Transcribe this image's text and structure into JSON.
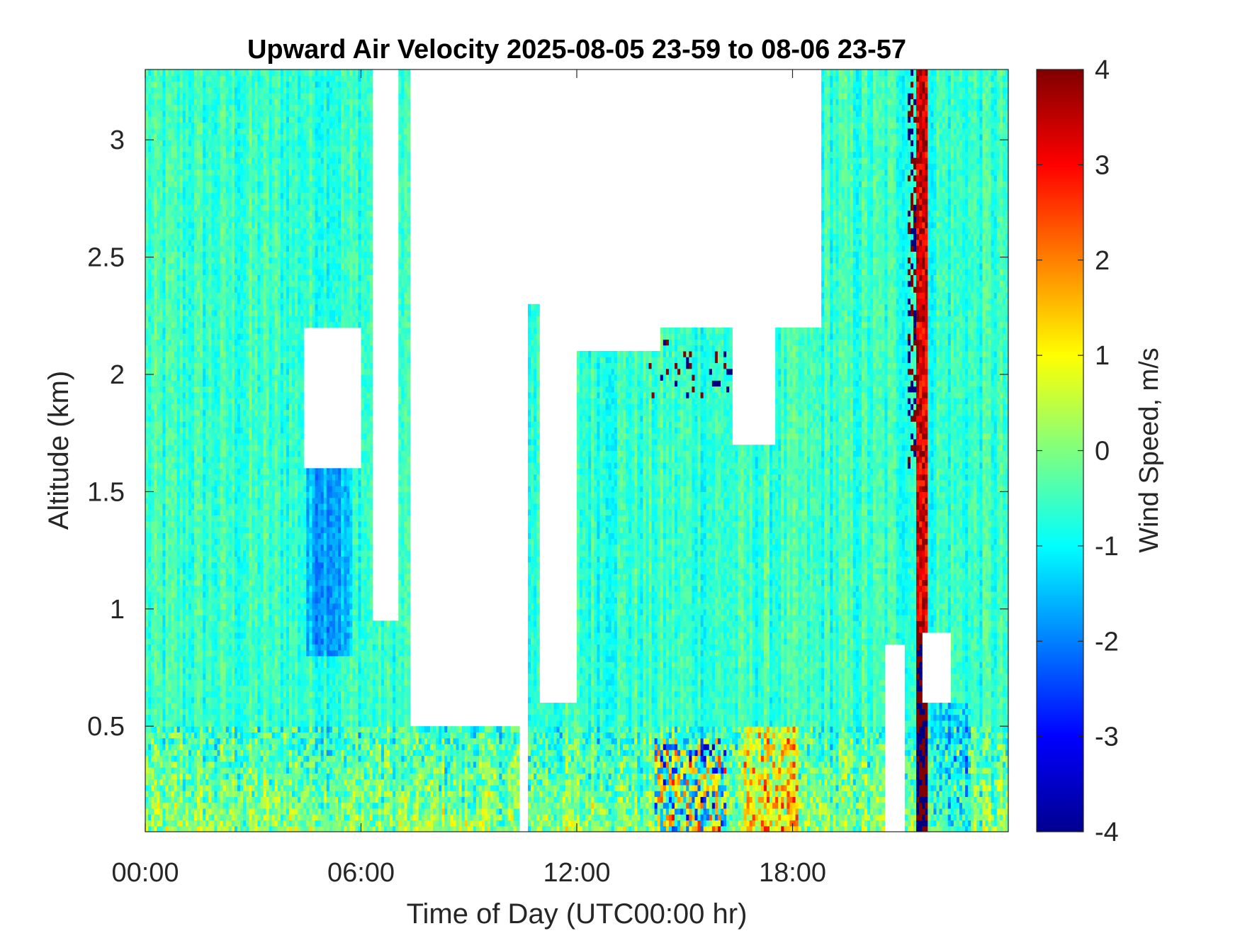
{
  "chart_data": {
    "type": "heatmap",
    "title": "Upward Air Velocity 2025-08-05 23-59 to 08-06 23-57",
    "xlabel": "Time of Day (UTC00:00 hr)",
    "ylabel": "Altitude (km)",
    "colorbar_label": "Wind Speed, m/s",
    "colormap": "jet",
    "x_unit": "hours",
    "xlim": [
      0,
      24
    ],
    "ylim": [
      0.05,
      3.3
    ],
    "clim": [
      -4,
      4
    ],
    "x_ticks": [
      {
        "value": 0,
        "label": "00:00"
      },
      {
        "value": 6,
        "label": "06:00"
      },
      {
        "value": 12,
        "label": "12:00"
      },
      {
        "value": 18,
        "label": "18:00"
      }
    ],
    "y_ticks": [
      {
        "value": 0.5,
        "label": "0.5"
      },
      {
        "value": 1,
        "label": "1"
      },
      {
        "value": 1.5,
        "label": "1.5"
      },
      {
        "value": 2,
        "label": "2"
      },
      {
        "value": 2.5,
        "label": "2.5"
      },
      {
        "value": 3,
        "label": "3"
      }
    ],
    "colorbar_ticks": [
      {
        "value": 4,
        "label": "4"
      },
      {
        "value": 3,
        "label": "3"
      },
      {
        "value": 2,
        "label": "2"
      },
      {
        "value": 1,
        "label": "1"
      },
      {
        "value": 0,
        "label": "0"
      },
      {
        "value": -1,
        "label": "-1"
      },
      {
        "value": -2,
        "label": "-2"
      },
      {
        "value": -3,
        "label": "-3"
      },
      {
        "value": -4,
        "label": "-4"
      }
    ],
    "typical_values": {
      "background_mean": -0.6,
      "near_surface_mean": 0.2,
      "updraft_column_22h": 3.0,
      "convective_core_14_16h": -2.5
    },
    "missing_data_regions": [
      {
        "x": [
          6.3,
          7.0
        ],
        "y": [
          0.95,
          3.3
        ]
      },
      {
        "x": [
          7.4,
          10.4
        ],
        "y": [
          0.5,
          3.3
        ]
      },
      {
        "x": [
          10.4,
          10.6
        ],
        "y": [
          0.05,
          3.3
        ]
      },
      {
        "x": [
          10.6,
          12.0
        ],
        "y": [
          2.3,
          3.3
        ]
      },
      {
        "x": [
          12.0,
          14.3
        ],
        "y": [
          2.1,
          3.3
        ]
      },
      {
        "x": [
          11.0,
          12.0
        ],
        "y": [
          0.6,
          2.3
        ]
      },
      {
        "x": [
          14.3,
          18.8
        ],
        "y": [
          2.2,
          3.3
        ]
      },
      {
        "x": [
          4.4,
          6.0
        ],
        "y": [
          1.6,
          2.2
        ]
      },
      {
        "x": [
          16.3,
          17.5
        ],
        "y": [
          1.7,
          2.2
        ]
      },
      {
        "x": [
          20.6,
          21.1
        ],
        "y": [
          0.05,
          0.85
        ]
      },
      {
        "x": [
          21.6,
          22.4
        ],
        "y": [
          0.6,
          0.9
        ]
      }
    ]
  }
}
